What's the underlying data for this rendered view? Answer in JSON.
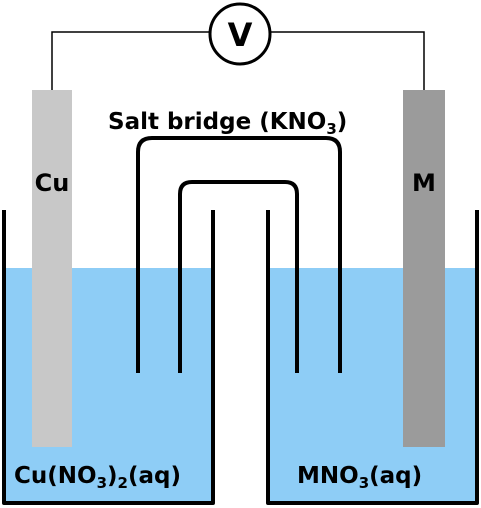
{
  "voltmeter": {
    "symbol": "V"
  },
  "salt_bridge": {
    "label_main": "Salt bridge (KNO",
    "label_sub": "3",
    "label_end": ")"
  },
  "left_cell": {
    "electrode_label": "Cu",
    "solution_label_main": "Cu(NO",
    "solution_label_sub": "3",
    "solution_label_sub2": "2",
    "solution_label_end": "(aq)"
  },
  "right_cell": {
    "electrode_label": "M",
    "solution_label_main": "MNO",
    "solution_label_sub": "3",
    "solution_label_end": "(aq)"
  },
  "colors": {
    "solution": "#8ecdf6",
    "cu_electrode": "#c8c8c8",
    "m_electrode": "#9b9b9b",
    "outline": "#000000"
  }
}
